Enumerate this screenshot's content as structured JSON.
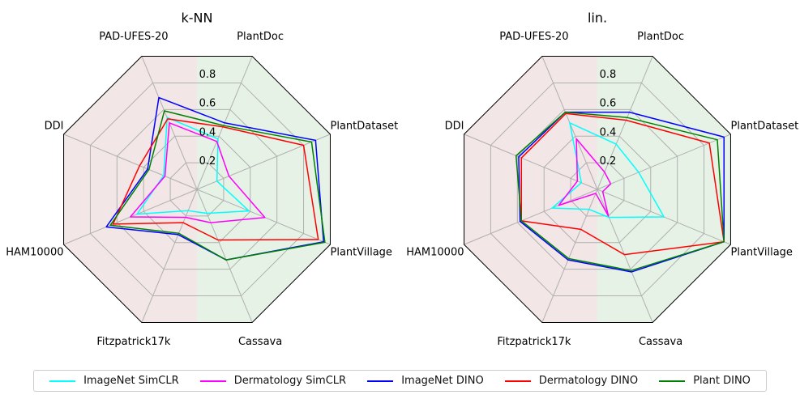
{
  "colors": {
    "ImageNet SimCLR": "#00ffff",
    "Dermatology SimCLR": "#ff00ff",
    "ImageNet DINO": "#0000ff",
    "Dermatology DINO": "#ff0000",
    "Plant DINO": "#008000",
    "derm_background": "#f2e6e6",
    "plant_background": "#e6f2e6",
    "grid": "#b0b0b0"
  },
  "legend": [
    "ImageNet SimCLR",
    "Dermatology SimCLR",
    "ImageNet DINO",
    "Dermatology DINO",
    "Plant DINO"
  ],
  "chart_data": [
    {
      "type": "radar",
      "title": "k-NN",
      "axes": [
        "PlantDoc",
        "PAD-UFES-20",
        "DDI",
        "HAM10000",
        "Fitzpatrick17k",
        "Cassava",
        "PlantVillage",
        "PlantDataset"
      ],
      "radial_ticks": [
        "0.2",
        "0.4",
        "0.6",
        "0.8"
      ],
      "rlim": [
        0,
        1
      ],
      "grid": true,
      "series": [
        {
          "name": "ImageNet SimCLR",
          "values": [
            0.38,
            0.54,
            0.25,
            0.45,
            0.16,
            0.18,
            0.39,
            0.15
          ]
        },
        {
          "name": "Dermatology SimCLR",
          "values": [
            0.36,
            0.5,
            0.24,
            0.5,
            0.21,
            0.25,
            0.51,
            0.24
          ]
        },
        {
          "name": "ImageNet DINO",
          "values": [
            0.5,
            0.69,
            0.37,
            0.68,
            0.34,
            0.53,
            0.95,
            0.89
          ]
        },
        {
          "name": "Dermatology DINO",
          "values": [
            0.47,
            0.53,
            0.43,
            0.63,
            0.25,
            0.38,
            0.91,
            0.8
          ]
        },
        {
          "name": "Plant DINO",
          "values": [
            0.48,
            0.59,
            0.36,
            0.65,
            0.33,
            0.53,
            0.96,
            0.86
          ]
        }
      ]
    },
    {
      "type": "radar",
      "title": "lin.",
      "axes": [
        "PlantDoc",
        "PAD-UFES-20",
        "DDI",
        "HAM10000",
        "Fitzpatrick17k",
        "Cassava",
        "PlantVillage",
        "PlantDataset"
      ],
      "radial_ticks": [
        "0.2",
        "0.4",
        "0.6",
        "0.8"
      ],
      "rlim": [
        0,
        1
      ],
      "grid": true,
      "series": [
        {
          "name": "ImageNet SimCLR",
          "values": [
            0.34,
            0.5,
            0.12,
            0.34,
            0.15,
            0.21,
            0.5,
            0.31
          ]
        },
        {
          "name": "Dermatology SimCLR",
          "values": [
            0.13,
            0.38,
            0.15,
            0.29,
            0.03,
            0.2,
            0.04,
            0.1
          ]
        },
        {
          "name": "ImageNet DINO",
          "values": [
            0.58,
            0.58,
            0.59,
            0.58,
            0.53,
            0.62,
            0.95,
            0.95
          ]
        },
        {
          "name": "Dermatology DINO",
          "values": [
            0.52,
            0.57,
            0.57,
            0.57,
            0.3,
            0.49,
            0.95,
            0.84
          ]
        },
        {
          "name": "Plant DINO",
          "values": [
            0.54,
            0.58,
            0.61,
            0.57,
            0.52,
            0.61,
            0.95,
            0.9
          ]
        }
      ]
    }
  ]
}
